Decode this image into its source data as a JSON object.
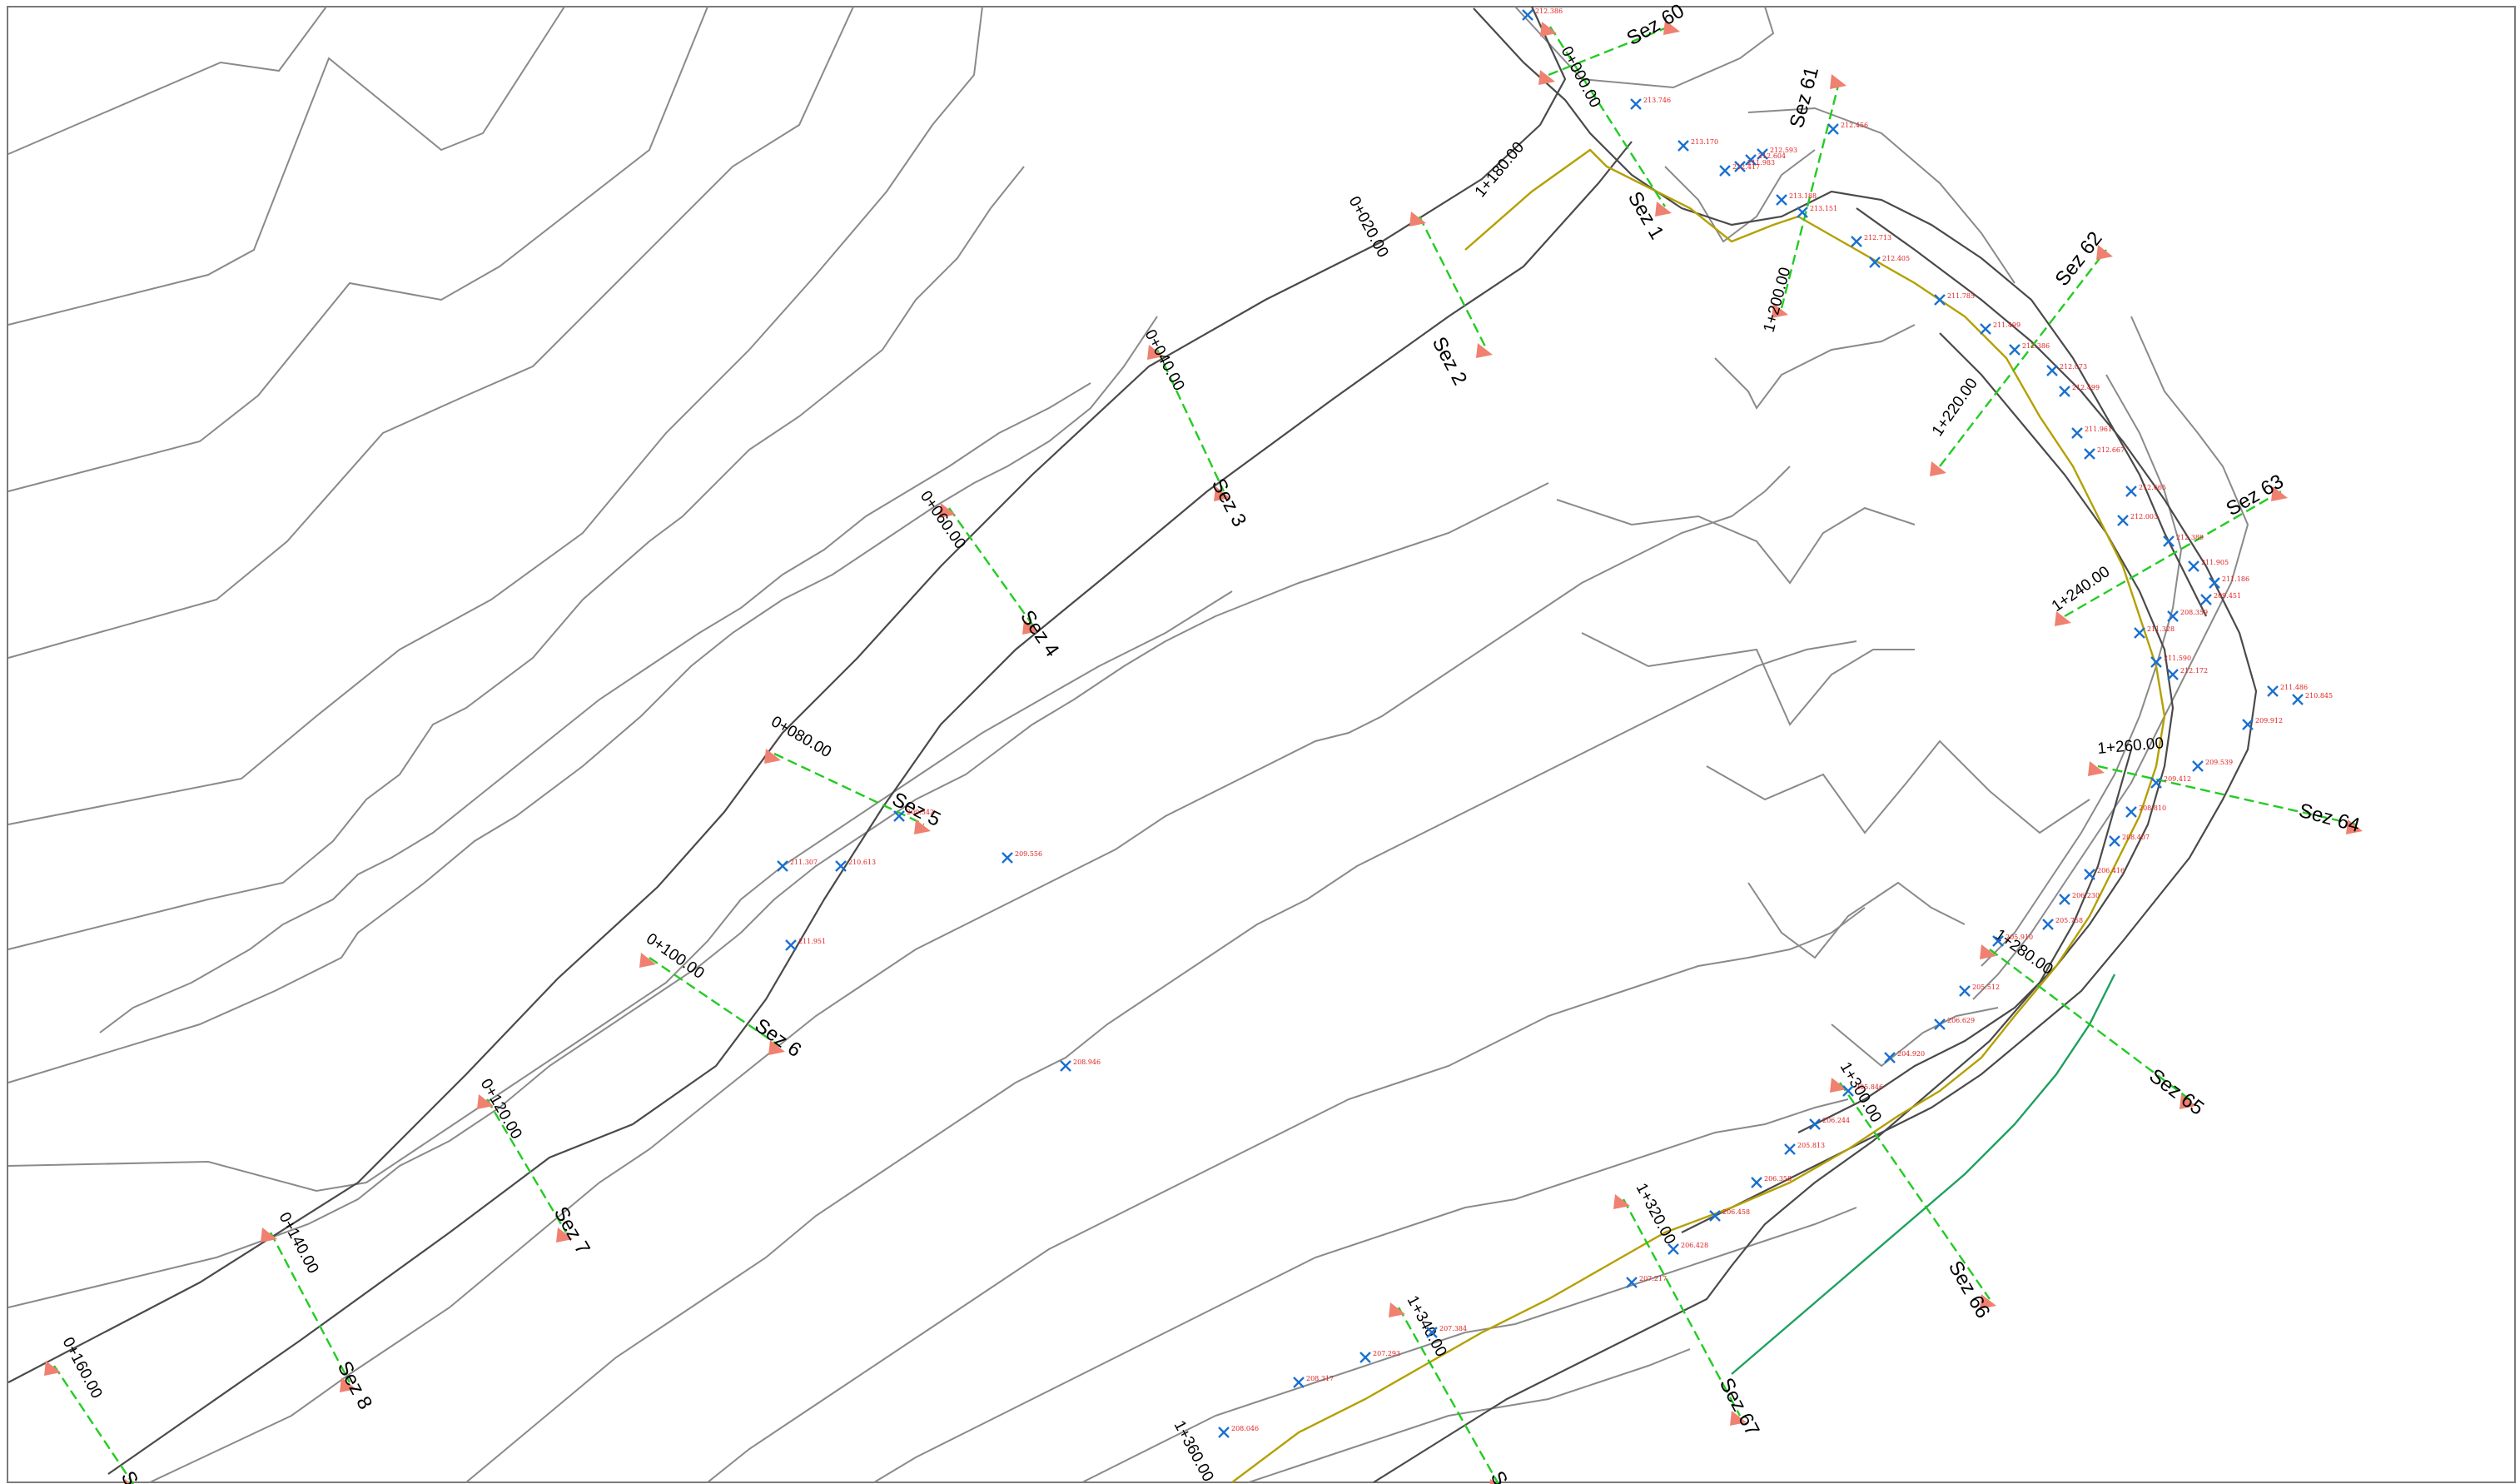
{
  "drawing": {
    "sections": [
      {
        "id": "sez-1",
        "label": "Sez 1"
      },
      {
        "id": "sez-2",
        "label": "Sez 2"
      },
      {
        "id": "sez-3",
        "label": "Sez 3"
      },
      {
        "id": "sez-4",
        "label": "Sez 4"
      },
      {
        "id": "sez-5",
        "label": "Sez 5"
      },
      {
        "id": "sez-6",
        "label": "Sez 6"
      },
      {
        "id": "sez-7",
        "label": "Sez 7"
      },
      {
        "id": "sez-8",
        "label": "Sez 8"
      },
      {
        "id": "sez-9",
        "label": "Sez"
      },
      {
        "id": "sez-60",
        "label": "Sez 60"
      },
      {
        "id": "sez-61",
        "label": "Sez 61"
      },
      {
        "id": "sez-62",
        "label": "Sez 62"
      },
      {
        "id": "sez-63",
        "label": "Sez 63"
      },
      {
        "id": "sez-64",
        "label": "Sez 64"
      },
      {
        "id": "sez-65",
        "label": "Sez 65"
      },
      {
        "id": "sez-66",
        "label": "Sez 66"
      },
      {
        "id": "sez-67",
        "label": "Sez 67"
      },
      {
        "id": "sez-68",
        "label": "S"
      }
    ],
    "chainages": [
      "0+000.00",
      "0+020.00",
      "0+040.00",
      "0+060.00",
      "0+080.00",
      "0+100.00",
      "0+120.00",
      "0+140.00",
      "0+160.00",
      "1+180.00",
      "1+200.00",
      "1+220.00",
      "1+240.00",
      "1+260.00",
      "1+280.00",
      "1+300.00",
      "1+320.00",
      "1+340.00",
      "1+360.00"
    ],
    "points": [
      "212.386",
      "213.746",
      "213.170",
      "212.593",
      "212.604",
      "211.983",
      "212.417",
      "213.188",
      "213.151",
      "212.456",
      "212.713",
      "212.405",
      "211.785",
      "211.499",
      "212.386",
      "212.073",
      "212.499",
      "211.961",
      "212.667",
      "212.665",
      "212.003",
      "212.389",
      "211.905",
      "211.186",
      "209.451",
      "208.359",
      "211.328",
      "211.590",
      "212.172",
      "211.486",
      "210.845",
      "209.912",
      "209.539",
      "209.412",
      "208.810",
      "208.407",
      "206.416",
      "206.230",
      "205.758",
      "205.910",
      "205.512",
      "206.629",
      "204.920",
      "205.846",
      "206.244",
      "205.813",
      "206.358",
      "206.458",
      "206.428",
      "207.217",
      "207.384",
      "207.293",
      "208.317",
      "208.046",
      "208.946",
      "209.556",
      "209.342",
      "210.613",
      "211.307",
      "211.951"
    ]
  },
  "colors": {
    "contour": "#8a8a8a",
    "edge": "#4a4a4a",
    "axis": "#b4a000",
    "axis_b": "#1ea060",
    "section": "#22cc22",
    "flag": "#f08070",
    "point_marker": "#1a70d0",
    "point_label": "#e02020"
  }
}
